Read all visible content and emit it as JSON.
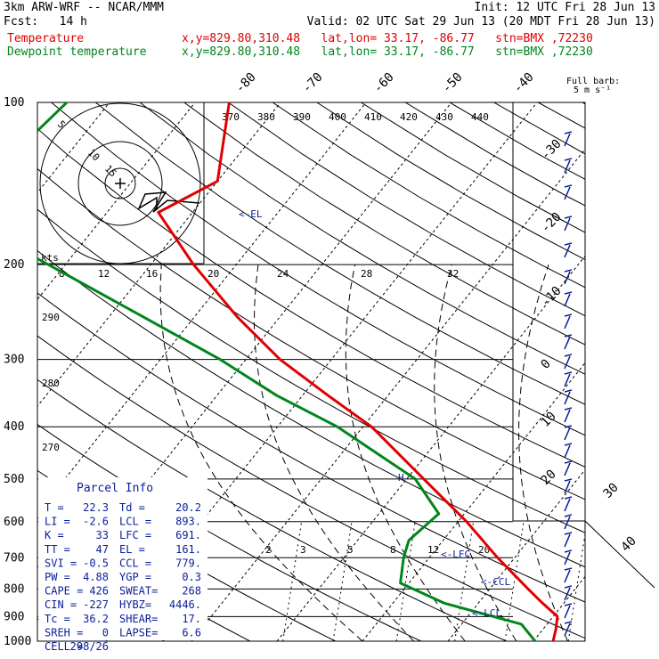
{
  "header": {
    "model": "3km ARW-WRF -- NCAR/MMM",
    "init": "Init: 12 UTC Fri 28 Jun 13",
    "fcst": "Fcst:   14 h",
    "valid": "Valid: 02 UTC Sat 29 Jun 13 (20 MDT Fri 28 Jun 13)",
    "temp_label": "Temperature",
    "dew_label": "Dewpoint temperature",
    "location": "x,y=829.80,310.48   lat,lon= 33.17, -86.77   stn=BMX ,72230"
  },
  "colors": {
    "temperature": "#e00000",
    "dewpoint": "#00861c",
    "parcel_info": "#0a1e9a",
    "wind": "#0a1e9a"
  },
  "barb_key": {
    "title": "Full barb:",
    "value": "5 m s⁻¹"
  },
  "parcel_info": {
    "title": "Parcel Info",
    "rows": [
      [
        "T  =",
        "22.3",
        "Td =",
        "20.2"
      ],
      [
        "LI =",
        "-2.6",
        "LCL =",
        "893."
      ],
      [
        "K  =",
        "33",
        "LFC =",
        "691."
      ],
      [
        "TT =",
        "47",
        "EL  =",
        "161."
      ],
      [
        "SVI =",
        "-0.5",
        "CCL =",
        "779."
      ],
      [
        "PW =",
        "4.88",
        "YGP =",
        "0.3"
      ],
      [
        "CAPE =",
        "426",
        "SWEAT=",
        "268"
      ],
      [
        "CIN =",
        "-227",
        "HYBZ=",
        "4446."
      ],
      [
        "Tc =",
        "36.2",
        "SHEAR=",
        "17."
      ],
      [
        "SREH =",
        "0",
        "LAPSE=",
        "6.6"
      ],
      [
        "CELL =",
        "298/26",
        "",
        ""
      ]
    ]
  },
  "chart_data": {
    "type": "line",
    "title": "",
    "ylabel": "",
    "xlabel": "",
    "pressure_levels": [
      100,
      200,
      300,
      400,
      500,
      600,
      700,
      800,
      900,
      1000
    ],
    "pressure_tick_labels": [
      "100",
      "200",
      "300",
      "400",
      "500",
      "600",
      "700",
      "800",
      "900",
      "1000"
    ],
    "isotherm_labels": [
      "-80",
      "-70",
      "-60",
      "-50",
      "-40",
      "-30",
      "-20",
      "-10",
      "0",
      "10",
      "20",
      "30",
      "40"
    ],
    "theta_labels": [
      "370",
      "380",
      "390",
      "400",
      "410",
      "420",
      "430",
      "440"
    ],
    "mixing_ratio_top_labels": [
      "8",
      "12",
      "16",
      "20",
      "24",
      "28",
      "32"
    ],
    "mixing_ratio_bottom_labels": [
      "2",
      "3",
      "5",
      "8",
      "12",
      "20"
    ],
    "dry_adiabat_labels": [
      "290",
      "280",
      "270"
    ],
    "kts_label": "kts",
    "hodograph_ring_labels": [
      "5",
      "10",
      "15"
    ],
    "level_markers": {
      "el": "<-EL",
      "lfc": "<-LFC",
      "ccl": "<-CCL",
      "lcl": "<-LCL",
      "h": "H"
    },
    "series": [
      {
        "name": "Temperature",
        "color": "#e00000",
        "points": [
          [
            100,
            -66
          ],
          [
            140,
            -60
          ],
          [
            160,
            -64
          ],
          [
            200,
            -55
          ],
          [
            250,
            -45
          ],
          [
            300,
            -36
          ],
          [
            350,
            -27
          ],
          [
            400,
            -19
          ],
          [
            500,
            -8
          ],
          [
            600,
            1
          ],
          [
            700,
            8
          ],
          [
            800,
            14.5
          ],
          [
            850,
            17.5
          ],
          [
            900,
            20.5
          ],
          [
            950,
            21.5
          ],
          [
            1000,
            22.3
          ]
        ]
      },
      {
        "name": "Dewpoint temperature",
        "color": "#00861c",
        "points": [
          [
            100,
            -85
          ],
          [
            160,
            -88
          ],
          [
            200,
            -72
          ],
          [
            250,
            -56
          ],
          [
            300,
            -43
          ],
          [
            350,
            -33
          ],
          [
            400,
            -23
          ],
          [
            500,
            -9
          ],
          [
            580,
            -3
          ],
          [
            650,
            -4
          ],
          [
            700,
            -3
          ],
          [
            780,
            -1
          ],
          [
            850,
            6
          ],
          [
            900,
            13
          ],
          [
            930,
            17
          ],
          [
            1000,
            20.2
          ]
        ]
      }
    ]
  }
}
